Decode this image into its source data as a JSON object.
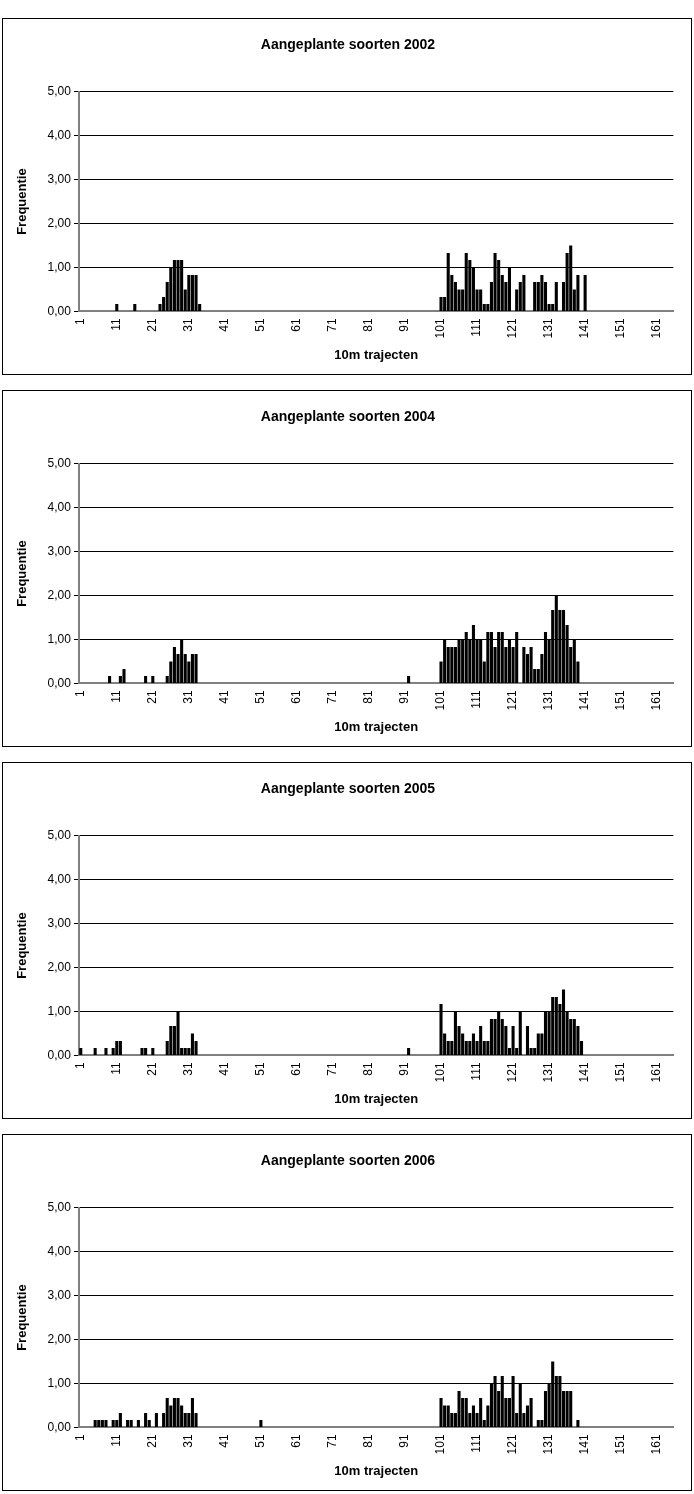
{
  "chart_data": [
    {
      "type": "bar",
      "title": "Aangeplante soorten 2002",
      "xlabel": "10m trajecten",
      "ylabel": "Frequentie",
      "categories": [
        "1",
        null,
        null,
        null,
        null,
        null,
        null,
        null,
        null,
        null,
        "11",
        null,
        null,
        null,
        null,
        null,
        null,
        null,
        null,
        null,
        "21",
        null,
        null,
        null,
        null,
        null,
        null,
        null,
        null,
        null,
        "31",
        null,
        null,
        null,
        null,
        null,
        null,
        null,
        null,
        null,
        "41",
        null,
        null,
        null,
        null,
        null,
        null,
        null,
        null,
        null,
        "51",
        null,
        null,
        null,
        null,
        null,
        null,
        null,
        null,
        null,
        "61",
        null,
        null,
        null,
        null,
        null,
        null,
        null,
        null,
        null,
        "71",
        null,
        null,
        null,
        null,
        null,
        null,
        null,
        null,
        null,
        "81",
        null,
        null,
        null,
        null,
        null,
        null,
        null,
        null,
        null,
        "91",
        null,
        null,
        null,
        null,
        null,
        null,
        null,
        null,
        null,
        "101",
        null,
        null,
        null,
        null,
        null,
        null,
        null,
        null,
        null,
        "111",
        null,
        null,
        null,
        null,
        null,
        null,
        null,
        null,
        null,
        "121",
        null,
        null,
        null,
        null,
        null,
        null,
        null,
        null,
        null,
        "131",
        null,
        null,
        null,
        null,
        null,
        null,
        null,
        null,
        null,
        "141",
        null,
        null,
        null,
        null,
        null,
        null,
        null,
        null,
        null,
        "151",
        null,
        null,
        null,
        null,
        null,
        null,
        null,
        null,
        null,
        "161",
        null,
        null,
        null,
        null
      ],
      "values": [
        0,
        0,
        0,
        0,
        0,
        0,
        0,
        0,
        0,
        0,
        0.17,
        0,
        0,
        0,
        0,
        0.17,
        0,
        0,
        0,
        0,
        0,
        0,
        0.17,
        0.33,
        0.67,
        1,
        1.17,
        1.17,
        1.17,
        0.5,
        0.83,
        0.83,
        0.83,
        0.17,
        0,
        0,
        0,
        0,
        0,
        0,
        0,
        0,
        0,
        0,
        0,
        0,
        0,
        0,
        0,
        0,
        0,
        0,
        0,
        0,
        0,
        0,
        0,
        0,
        0,
        0,
        0,
        0,
        0,
        0,
        0,
        0,
        0,
        0,
        0,
        0,
        0,
        0,
        0,
        0,
        0,
        0,
        0,
        0,
        0,
        0,
        0,
        0,
        0,
        0,
        0,
        0,
        0,
        0,
        0,
        0,
        0,
        0,
        0,
        0,
        0,
        0,
        0,
        0,
        0,
        0,
        0.33,
        0.33,
        1.33,
        0.83,
        0.67,
        0.5,
        0.5,
        1.33,
        1.17,
        1,
        0.5,
        0.5,
        0.17,
        0.17,
        0.67,
        1.33,
        1.17,
        0.83,
        0.67,
        1,
        0,
        0.5,
        0.67,
        0.83,
        0,
        0,
        0.67,
        0.67,
        0.83,
        0.67,
        0.17,
        0.17,
        0.67,
        0,
        0.67,
        1.33,
        1.5,
        0.5,
        0.83,
        0,
        0.83,
        0,
        0,
        0,
        0,
        0,
        0,
        0,
        0,
        0,
        0,
        0,
        0,
        0,
        0,
        0,
        0,
        0,
        0,
        0,
        0,
        0,
        0,
        0,
        0
      ],
      "color": "#000000",
      "ylim": [
        0,
        5
      ],
      "yticks": [
        {
          "value": 0,
          "label": "0,00"
        },
        {
          "value": 1,
          "label": "1,00"
        },
        {
          "value": 2,
          "label": "2,00"
        },
        {
          "value": 3,
          "label": "3,00"
        },
        {
          "value": 4,
          "label": "4,00"
        },
        {
          "value": 5,
          "label": "5,00"
        }
      ],
      "grid": "y",
      "legend": false
    },
    {
      "type": "bar",
      "title": "Aangeplante soorten 2004",
      "xlabel": "10m trajecten",
      "ylabel": "Frequentie",
      "categories": [
        "1",
        null,
        null,
        null,
        null,
        null,
        null,
        null,
        null,
        null,
        "11",
        null,
        null,
        null,
        null,
        null,
        null,
        null,
        null,
        null,
        "21",
        null,
        null,
        null,
        null,
        null,
        null,
        null,
        null,
        null,
        "31",
        null,
        null,
        null,
        null,
        null,
        null,
        null,
        null,
        null,
        "41",
        null,
        null,
        null,
        null,
        null,
        null,
        null,
        null,
        null,
        "51",
        null,
        null,
        null,
        null,
        null,
        null,
        null,
        null,
        null,
        "61",
        null,
        null,
        null,
        null,
        null,
        null,
        null,
        null,
        null,
        "71",
        null,
        null,
        null,
        null,
        null,
        null,
        null,
        null,
        null,
        "81",
        null,
        null,
        null,
        null,
        null,
        null,
        null,
        null,
        null,
        "91",
        null,
        null,
        null,
        null,
        null,
        null,
        null,
        null,
        null,
        "101",
        null,
        null,
        null,
        null,
        null,
        null,
        null,
        null,
        null,
        "111",
        null,
        null,
        null,
        null,
        null,
        null,
        null,
        null,
        null,
        "121",
        null,
        null,
        null,
        null,
        null,
        null,
        null,
        null,
        null,
        "131",
        null,
        null,
        null,
        null,
        null,
        null,
        null,
        null,
        null,
        "141",
        null,
        null,
        null,
        null,
        null,
        null,
        null,
        null,
        null,
        "151",
        null,
        null,
        null,
        null,
        null,
        null,
        null,
        null,
        null,
        "161",
        null,
        null,
        null,
        null
      ],
      "values": [
        0,
        0,
        0,
        0,
        0,
        0,
        0,
        0,
        0.17,
        0,
        0,
        0.17,
        0.33,
        0,
        0,
        0,
        0,
        0,
        0.17,
        0,
        0.17,
        0,
        0,
        0,
        0.17,
        0.5,
        0.83,
        0.67,
        1,
        0.67,
        0.5,
        0.67,
        0.67,
        0,
        0,
        0,
        0,
        0,
        0,
        0,
        0,
        0,
        0,
        0,
        0,
        0,
        0,
        0,
        0,
        0,
        0,
        0,
        0,
        0,
        0,
        0,
        0,
        0,
        0,
        0,
        0,
        0,
        0,
        0,
        0,
        0,
        0,
        0,
        0,
        0,
        0,
        0,
        0,
        0,
        0,
        0,
        0,
        0,
        0,
        0,
        0,
        0,
        0,
        0,
        0,
        0,
        0,
        0,
        0,
        0,
        0,
        0.17,
        0,
        0,
        0,
        0,
        0,
        0,
        0,
        0,
        0.5,
        1,
        0.83,
        0.83,
        0.83,
        1,
        1,
        1.17,
        1,
        1.33,
        1,
        1,
        0.5,
        1.17,
        1.17,
        0.83,
        1.17,
        1.17,
        0.83,
        1,
        0.83,
        1.17,
        0,
        0.83,
        0.67,
        0.83,
        0.33,
        0.33,
        0.67,
        1.17,
        1,
        1.67,
        2,
        1.67,
        1.67,
        1.33,
        0.83,
        1,
        0.5,
        0,
        0,
        0,
        0,
        0,
        0,
        0,
        0,
        0,
        0,
        0,
        0,
        0,
        0,
        0,
        0,
        0,
        0,
        0,
        0,
        0,
        0,
        0,
        0,
        0,
        0
      ],
      "color": "#000000",
      "ylim": [
        0,
        5
      ],
      "yticks": [
        {
          "value": 0,
          "label": "0,00"
        },
        {
          "value": 1,
          "label": "1,00"
        },
        {
          "value": 2,
          "label": "2,00"
        },
        {
          "value": 3,
          "label": "3,00"
        },
        {
          "value": 4,
          "label": "4,00"
        },
        {
          "value": 5,
          "label": "5,00"
        }
      ],
      "grid": "y",
      "legend": false
    },
    {
      "type": "bar",
      "title": "Aangeplante soorten 2005",
      "xlabel": "10m trajecten",
      "ylabel": "Frequentie",
      "categories": [
        "1",
        null,
        null,
        null,
        null,
        null,
        null,
        null,
        null,
        null,
        "11",
        null,
        null,
        null,
        null,
        null,
        null,
        null,
        null,
        null,
        "21",
        null,
        null,
        null,
        null,
        null,
        null,
        null,
        null,
        null,
        "31",
        null,
        null,
        null,
        null,
        null,
        null,
        null,
        null,
        null,
        "41",
        null,
        null,
        null,
        null,
        null,
        null,
        null,
        null,
        null,
        "51",
        null,
        null,
        null,
        null,
        null,
        null,
        null,
        null,
        null,
        "61",
        null,
        null,
        null,
        null,
        null,
        null,
        null,
        null,
        null,
        "71",
        null,
        null,
        null,
        null,
        null,
        null,
        null,
        null,
        null,
        "81",
        null,
        null,
        null,
        null,
        null,
        null,
        null,
        null,
        null,
        "91",
        null,
        null,
        null,
        null,
        null,
        null,
        null,
        null,
        null,
        "101",
        null,
        null,
        null,
        null,
        null,
        null,
        null,
        null,
        null,
        "111",
        null,
        null,
        null,
        null,
        null,
        null,
        null,
        null,
        null,
        "121",
        null,
        null,
        null,
        null,
        null,
        null,
        null,
        null,
        null,
        "131",
        null,
        null,
        null,
        null,
        null,
        null,
        null,
        null,
        null,
        "141",
        null,
        null,
        null,
        null,
        null,
        null,
        null,
        null,
        null,
        "151",
        null,
        null,
        null,
        null,
        null,
        null,
        null,
        null,
        null,
        "161",
        null,
        null,
        null,
        null
      ],
      "values": [
        0.17,
        0,
        0,
        0,
        0.17,
        0,
        0,
        0.17,
        0,
        0.17,
        0.33,
        0.33,
        0,
        0,
        0,
        0,
        0,
        0.17,
        0.17,
        0,
        0.17,
        0,
        0,
        0,
        0.33,
        0.67,
        0.67,
        1,
        0.17,
        0.17,
        0.17,
        0.5,
        0.33,
        0,
        0,
        0,
        0,
        0,
        0,
        0,
        0,
        0,
        0,
        0,
        0,
        0,
        0,
        0,
        0,
        0,
        0,
        0,
        0,
        0,
        0,
        0,
        0,
        0,
        0,
        0,
        0,
        0,
        0,
        0,
        0,
        0,
        0,
        0,
        0,
        0,
        0,
        0,
        0,
        0,
        0,
        0,
        0,
        0,
        0,
        0,
        0,
        0,
        0,
        0,
        0,
        0,
        0,
        0,
        0,
        0,
        0,
        0.17,
        0,
        0,
        0,
        0,
        0,
        0,
        0,
        0,
        1.17,
        0.5,
        0.33,
        0.33,
        1,
        0.67,
        0.5,
        0.33,
        0.33,
        0.5,
        0.33,
        0.67,
        0.33,
        0.33,
        0.83,
        0.83,
        1,
        0.83,
        0.67,
        0.17,
        0.67,
        0.17,
        1,
        0,
        0.67,
        0.17,
        0.17,
        0.5,
        0.5,
        1,
        1,
        1.33,
        1.33,
        1.17,
        1.5,
        1,
        0.83,
        0.83,
        0.67,
        0.33,
        0,
        0,
        0,
        0,
        0,
        0,
        0,
        0,
        0,
        0,
        0,
        0,
        0,
        0,
        0,
        0,
        0,
        0,
        0,
        0,
        0,
        0,
        0,
        0,
        0
      ],
      "color": "#000000",
      "ylim": [
        0,
        5
      ],
      "yticks": [
        {
          "value": 0,
          "label": "0,00"
        },
        {
          "value": 1,
          "label": "1,00"
        },
        {
          "value": 2,
          "label": "2,00"
        },
        {
          "value": 3,
          "label": "3,00"
        },
        {
          "value": 4,
          "label": "4,00"
        },
        {
          "value": 5,
          "label": "5,00"
        }
      ],
      "grid": "y",
      "legend": false
    },
    {
      "type": "bar",
      "title": "Aangeplante soorten 2006",
      "xlabel": "10m trajecten",
      "ylabel": "Frequentie",
      "categories": [
        "1",
        null,
        null,
        null,
        null,
        null,
        null,
        null,
        null,
        null,
        "11",
        null,
        null,
        null,
        null,
        null,
        null,
        null,
        null,
        null,
        "21",
        null,
        null,
        null,
        null,
        null,
        null,
        null,
        null,
        null,
        "31",
        null,
        null,
        null,
        null,
        null,
        null,
        null,
        null,
        null,
        "41",
        null,
        null,
        null,
        null,
        null,
        null,
        null,
        null,
        null,
        "51",
        null,
        null,
        null,
        null,
        null,
        null,
        null,
        null,
        null,
        "61",
        null,
        null,
        null,
        null,
        null,
        null,
        null,
        null,
        null,
        "71",
        null,
        null,
        null,
        null,
        null,
        null,
        null,
        null,
        null,
        "81",
        null,
        null,
        null,
        null,
        null,
        null,
        null,
        null,
        null,
        "91",
        null,
        null,
        null,
        null,
        null,
        null,
        null,
        null,
        null,
        "101",
        null,
        null,
        null,
        null,
        null,
        null,
        null,
        null,
        null,
        "111",
        null,
        null,
        null,
        null,
        null,
        null,
        null,
        null,
        null,
        "121",
        null,
        null,
        null,
        null,
        null,
        null,
        null,
        null,
        null,
        "131",
        null,
        null,
        null,
        null,
        null,
        null,
        null,
        null,
        null,
        "141",
        null,
        null,
        null,
        null,
        null,
        null,
        null,
        null,
        null,
        "151",
        null,
        null,
        null,
        null,
        null,
        null,
        null,
        null,
        null,
        "161",
        null,
        null,
        null,
        null
      ],
      "values": [
        0,
        0,
        0,
        0,
        0.17,
        0.17,
        0.17,
        0.17,
        0,
        0.17,
        0.17,
        0.33,
        0,
        0.17,
        0.17,
        0,
        0.17,
        0,
        0.33,
        0.17,
        0,
        0.33,
        0,
        0.33,
        0.67,
        0.5,
        0.67,
        0.67,
        0.5,
        0.33,
        0.33,
        0.67,
        0.33,
        0,
        0,
        0,
        0,
        0,
        0,
        0,
        0,
        0,
        0,
        0,
        0,
        0,
        0,
        0,
        0,
        0,
        0.17,
        0,
        0,
        0,
        0,
        0,
        0,
        0,
        0,
        0,
        0,
        0,
        0,
        0,
        0,
        0,
        0,
        0,
        0,
        0,
        0,
        0,
        0,
        0,
        0,
        0,
        0,
        0,
        0,
        0,
        0,
        0,
        0,
        0,
        0,
        0,
        0,
        0,
        0,
        0,
        0,
        0,
        0,
        0,
        0,
        0,
        0,
        0,
        0,
        0,
        0.67,
        0.5,
        0.5,
        0.33,
        0.33,
        0.83,
        0.67,
        0.67,
        0.33,
        0.5,
        0.33,
        0.67,
        0.17,
        0.5,
        1,
        1.17,
        0.83,
        1.17,
        0.67,
        0.67,
        1.17,
        0.33,
        1,
        0.33,
        0.5,
        0.67,
        0,
        0.17,
        0.17,
        0.83,
        1,
        1.5,
        1.17,
        1.17,
        0.83,
        0.83,
        0.83,
        0,
        0.17,
        0,
        0,
        0,
        0,
        0,
        0,
        0,
        0,
        0,
        0,
        0,
        0,
        0,
        0,
        0,
        0,
        0,
        0,
        0,
        0,
        0,
        0,
        0,
        0,
        0,
        0
      ],
      "color": "#000000",
      "ylim": [
        0,
        5
      ],
      "yticks": [
        {
          "value": 0,
          "label": "0,00"
        },
        {
          "value": 1,
          "label": "1,00"
        },
        {
          "value": 2,
          "label": "2,00"
        },
        {
          "value": 3,
          "label": "3,00"
        },
        {
          "value": 4,
          "label": "4,00"
        },
        {
          "value": 5,
          "label": "5,00"
        }
      ],
      "grid": "y",
      "legend": false
    }
  ]
}
